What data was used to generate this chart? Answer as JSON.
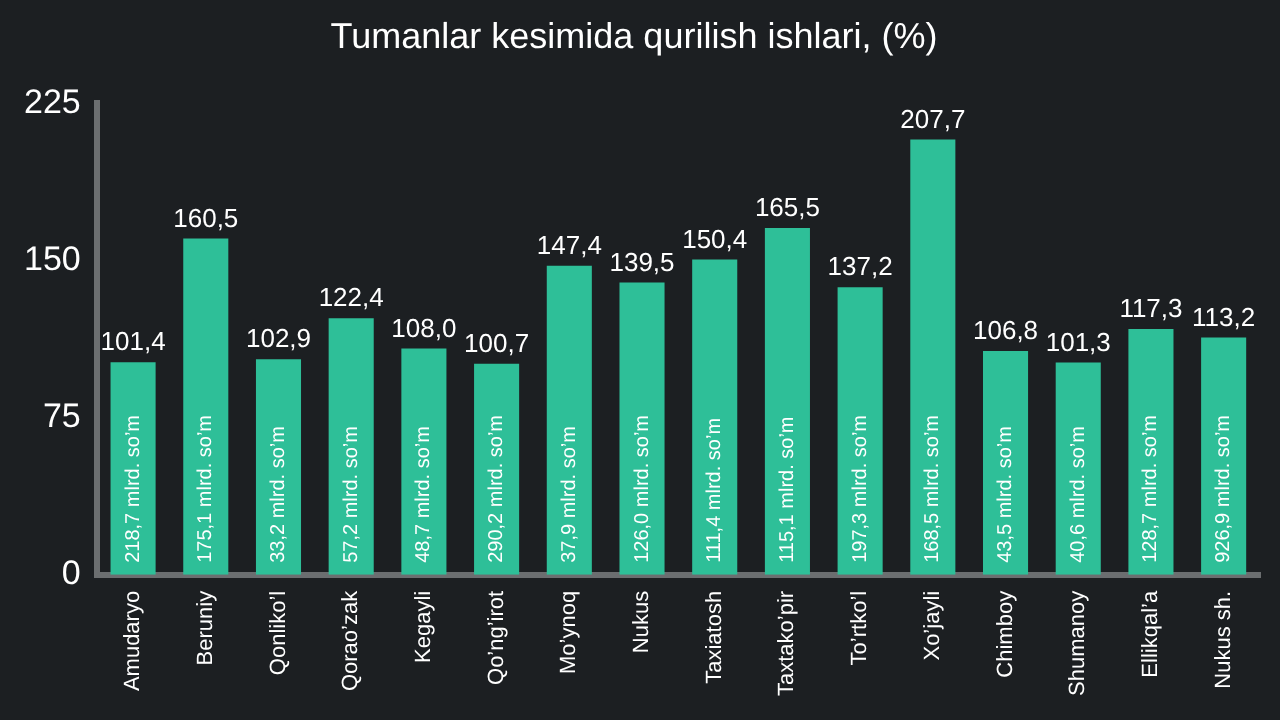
{
  "chart_data": {
    "type": "bar",
    "title": "Tumanlar kesimida qurilish ishlari, (%)",
    "categories": [
      "Amudaryo",
      "Beruniy",
      "Qonliko’l",
      "Qorao’zak",
      "Kegayli",
      "Qo’ng’irot",
      "Mo’ynoq",
      "Nukus",
      "Taxiatosh",
      "Taxtako’pir",
      "To’rtko’l",
      "Xo’jayli",
      "Chimboy",
      "Shumanoy",
      "Ellikqal’a",
      "Nukus sh."
    ],
    "values": [
      101.4,
      160.5,
      102.9,
      122.4,
      108.0,
      100.7,
      147.4,
      139.5,
      150.4,
      165.5,
      137.2,
      207.7,
      106.8,
      101.3,
      117.3,
      113.2
    ],
    "value_labels": [
      "101,4",
      "160,5",
      "102,9",
      "122,4",
      "108,0",
      "100,7",
      "147,4",
      "139,5",
      "150,4",
      "165,5",
      "137,2",
      "207,7",
      "106,8",
      "101,3",
      "117,3",
      "113,2"
    ],
    "color": "#2ebf98",
    "ylim": [
      0,
      225
    ],
    "yticks": [
      0,
      75,
      150,
      225
    ],
    "grid": false,
    "legend": false,
    "annotations": [
      "218,7 mlrd. so’m",
      "175,1 mlrd. so’m",
      "33,2 mlrd. so’m",
      "57,2 mlrd. so’m",
      "48,7 mlrd. so’m",
      "290,2 mlrd. so’m",
      "37,9 mlrd. so’m",
      "126,0 mlrd. so’m",
      "111,4 mlrd. so’m",
      "115,1 mlrd. so’m",
      "197,3 mlrd. so’m",
      "168,5 mlrd. so’m",
      "43,5 mlrd. so’m",
      "40,6 mlrd. so’m",
      "128,7 mlrd. so’m",
      "926,9 mlrd. so’m"
    ]
  }
}
